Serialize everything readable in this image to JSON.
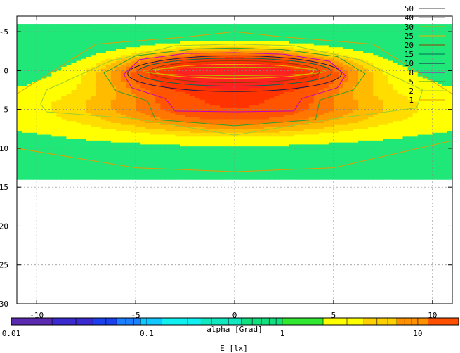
{
  "chart_data": {
    "type": "heatmap",
    "title": "",
    "xlabel": "alpha [Grad]",
    "ylabel": "",
    "xlim": [
      -11,
      11
    ],
    "ylim": [
      30,
      -7
    ],
    "y_reversed": true,
    "grid": true,
    "x_ticks": [
      -10,
      -5,
      0,
      5,
      10
    ],
    "y_ticks": [
      -5,
      0,
      5,
      10,
      15,
      20,
      25,
      30
    ],
    "data_extent": {
      "x": [
        -11,
        11
      ],
      "y": [
        -6,
        14
      ]
    },
    "contour_levels": [
      "50",
      "40",
      "30",
      "25",
      "20",
      "15",
      "10",
      "8",
      "5",
      "2",
      "1"
    ],
    "contour_colors": [
      "#444444",
      "#888888",
      "#b5b500",
      "#f0b000",
      "#8b4000",
      "#006a55",
      "#1a1a4d",
      "#c000c0",
      "#2ea02e",
      "#9acd32",
      "#e0a000"
    ],
    "legend_position": "top-right",
    "colorbar": {
      "label": "E [lx]",
      "scale": "log",
      "range": [
        0.01,
        20
      ],
      "tick_labels": [
        "0.01",
        "0.1",
        "1",
        "10"
      ],
      "tick_values": [
        0.01,
        0.1,
        1,
        10
      ]
    }
  }
}
